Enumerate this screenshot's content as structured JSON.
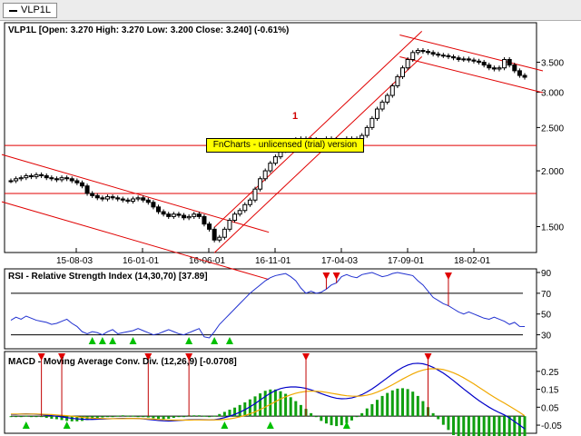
{
  "tab": {
    "label": "VLP1L"
  },
  "watermark": "FnCharts - unlicensed (trial) version",
  "annotations": {
    "marker_1": "1"
  },
  "chart_data": [
    {
      "type": "candlestick",
      "title": "VLP1L [Open: 3.270  High: 3.270  Low: 3.200  Close: 3.240] (-0.61%)",
      "y_scale": "log",
      "ylim": [
        1.35,
        4.0
      ],
      "y_ticks": [
        "3.500",
        "3.000",
        "2.500",
        "2.000",
        "1.500"
      ],
      "y_tick_values": [
        3.5,
        3.0,
        2.5,
        2.0,
        1.5
      ],
      "x_ticks": [
        "15-08-03",
        "16-01-01",
        "16-06-01",
        "16-11-01",
        "17-04-03",
        "17-09-01",
        "18-02-01"
      ],
      "close_series": [
        1.9,
        1.92,
        1.93,
        1.95,
        1.94,
        1.96,
        1.95,
        1.93,
        1.92,
        1.91,
        1.93,
        1.92,
        1.9,
        1.88,
        1.85,
        1.78,
        1.76,
        1.74,
        1.73,
        1.75,
        1.74,
        1.73,
        1.72,
        1.71,
        1.73,
        1.74,
        1.72,
        1.7,
        1.66,
        1.62,
        1.6,
        1.58,
        1.6,
        1.59,
        1.57,
        1.58,
        1.6,
        1.58,
        1.52,
        1.48,
        1.4,
        1.42,
        1.48,
        1.55,
        1.6,
        1.63,
        1.68,
        1.72,
        1.82,
        1.92,
        2.0,
        2.08,
        2.15,
        2.22,
        2.28,
        2.33,
        2.35,
        2.36,
        2.34,
        2.35,
        2.33,
        2.34,
        2.36,
        2.35,
        2.33,
        2.34,
        2.36,
        2.34,
        2.36,
        2.4,
        2.5,
        2.62,
        2.75,
        2.85,
        2.95,
        3.1,
        3.25,
        3.4,
        3.55,
        3.68,
        3.72,
        3.7,
        3.68,
        3.65,
        3.63,
        3.62,
        3.6,
        3.58,
        3.55,
        3.56,
        3.54,
        3.52,
        3.5,
        3.45,
        3.4,
        3.38,
        3.4,
        3.55,
        3.45,
        3.35,
        3.27,
        3.24
      ],
      "last_values": {
        "open": 3.27,
        "high": 3.27,
        "low": 3.2,
        "close": 3.24,
        "change_pct": -0.61
      },
      "horizontal_lines": [
        2.28,
        1.78
      ],
      "channels": [
        {
          "from_index": 0,
          "to_index": 42,
          "name": "descending channel"
        },
        {
          "from_index": 40,
          "to_index": 80,
          "name": "rising channel"
        },
        {
          "from_index": 80,
          "to_index": 101,
          "name": "descending channel"
        }
      ]
    },
    {
      "type": "line",
      "title": "RSI - Relative Strength Index (14,30,70) [37.89]",
      "ylim": [
        20,
        90
      ],
      "y_ticks": [
        "90",
        "70",
        "50",
        "30"
      ],
      "y_tick_values": [
        90,
        70,
        50,
        30
      ],
      "levels": [
        70,
        30
      ],
      "values": [
        44,
        47,
        45,
        48,
        46,
        44,
        43,
        42,
        40,
        41,
        43,
        45,
        41,
        38,
        33,
        31,
        33,
        32,
        30,
        33,
        35,
        31,
        32,
        33,
        34,
        36,
        34,
        32,
        30,
        31,
        33,
        35,
        33,
        31,
        30,
        32,
        34,
        36,
        28,
        27,
        33,
        40,
        45,
        50,
        55,
        60,
        65,
        70,
        74,
        78,
        82,
        85,
        87,
        88,
        89,
        86,
        82,
        75,
        70,
        72,
        70,
        71,
        74,
        78,
        80,
        86,
        88,
        86,
        85,
        88,
        89,
        90,
        88,
        86,
        87,
        89,
        90,
        89,
        88,
        87,
        82,
        78,
        72,
        66,
        63,
        60,
        58,
        55,
        52,
        50,
        52,
        50,
        48,
        46,
        45,
        47,
        45,
        43,
        40,
        42,
        38,
        37.89
      ],
      "signals_up": [
        16,
        18,
        20,
        24,
        35,
        40,
        43
      ],
      "signals_down": [
        62,
        64,
        86
      ]
    },
    {
      "type": "line",
      "title": "MACD - Moving Average Conv. Div. (12,26,9) [-0.0708]",
      "ylim": [
        -0.07,
        0.32
      ],
      "y_ticks": [
        "0.25",
        "0.15",
        "0.05",
        "-0.05"
      ],
      "y_tick_values": [
        0.25,
        0.15,
        0.05,
        -0.05
      ],
      "series": [
        {
          "name": "MACD",
          "color": "#0000c8",
          "values": [
            0.01,
            0.01,
            0.012,
            0.013,
            0.012,
            0.011,
            0.009,
            0.006,
            0.003,
            0.0,
            -0.004,
            -0.008,
            -0.012,
            -0.015,
            -0.017,
            -0.018,
            -0.018,
            -0.017,
            -0.016,
            -0.015,
            -0.014,
            -0.013,
            -0.012,
            -0.012,
            -0.012,
            -0.013,
            -0.015,
            -0.018,
            -0.021,
            -0.024,
            -0.026,
            -0.027,
            -0.026,
            -0.024,
            -0.022,
            -0.02,
            -0.019,
            -0.019,
            -0.02,
            -0.021,
            -0.02,
            -0.015,
            -0.008,
            0.0,
            0.01,
            0.022,
            0.036,
            0.052,
            0.07,
            0.09,
            0.11,
            0.128,
            0.143,
            0.154,
            0.16,
            0.163,
            0.163,
            0.16,
            0.155,
            0.147,
            0.137,
            0.126,
            0.116,
            0.107,
            0.1,
            0.097,
            0.098,
            0.102,
            0.11,
            0.12,
            0.135,
            0.152,
            0.172,
            0.193,
            0.214,
            0.235,
            0.255,
            0.272,
            0.285,
            0.293,
            0.295,
            0.292,
            0.284,
            0.272,
            0.257,
            0.24,
            0.22,
            0.198,
            0.175,
            0.152,
            0.13,
            0.108,
            0.087,
            0.068,
            0.05,
            0.034,
            0.02,
            0.007,
            -0.01,
            -0.03,
            -0.05,
            -0.0708
          ]
        },
        {
          "name": "Signal",
          "color": "#f0a800",
          "values": [
            0.012,
            0.012,
            0.012,
            0.012,
            0.012,
            0.012,
            0.011,
            0.01,
            0.009,
            0.007,
            0.005,
            0.003,
            0.0,
            -0.003,
            -0.006,
            -0.009,
            -0.011,
            -0.012,
            -0.013,
            -0.014,
            -0.014,
            -0.014,
            -0.014,
            -0.013,
            -0.013,
            -0.013,
            -0.014,
            -0.015,
            -0.016,
            -0.018,
            -0.019,
            -0.021,
            -0.022,
            -0.022,
            -0.022,
            -0.022,
            -0.021,
            -0.021,
            -0.021,
            -0.021,
            -0.021,
            -0.02,
            -0.018,
            -0.015,
            -0.01,
            -0.004,
            0.004,
            0.013,
            0.024,
            0.037,
            0.051,
            0.066,
            0.081,
            0.096,
            0.108,
            0.119,
            0.128,
            0.134,
            0.138,
            0.14,
            0.139,
            0.137,
            0.133,
            0.128,
            0.123,
            0.118,
            0.114,
            0.112,
            0.111,
            0.113,
            0.117,
            0.124,
            0.134,
            0.146,
            0.16,
            0.175,
            0.191,
            0.207,
            0.222,
            0.236,
            0.248,
            0.257,
            0.263,
            0.265,
            0.264,
            0.26,
            0.252,
            0.242,
            0.229,
            0.214,
            0.197,
            0.18,
            0.161,
            0.143,
            0.124,
            0.106,
            0.089,
            0.073,
            0.056,
            0.039,
            0.021,
            0.002
          ]
        }
      ],
      "signals_up": [
        3,
        11,
        42,
        51,
        66
      ],
      "signals_down": [
        6,
        10,
        27,
        35,
        58,
        82
      ]
    }
  ]
}
